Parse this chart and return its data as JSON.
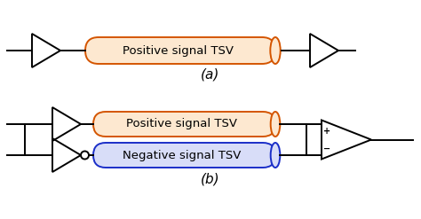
{
  "bg_color": "#ffffff",
  "line_color": "#000000",
  "orange_color": "#d45500",
  "blue_color": "#1a2ec8",
  "tsv_fill_orange": "#fde8d0",
  "tsv_fill_blue": "#d8ddf8",
  "label_a": "(a)",
  "label_b": "(b)",
  "pos_label": "Positive signal TSV",
  "neg_label": "Negative signal TSV",
  "fig_width": 4.74,
  "fig_height": 2.47,
  "dpi": 100
}
